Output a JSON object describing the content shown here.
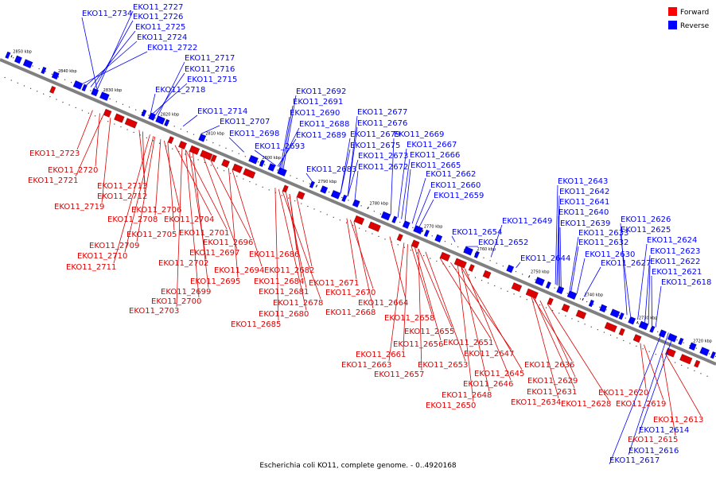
{
  "caption": "Escherichia coli KO11, complete genome. - 0..4920168",
  "legend": [
    {
      "label": "Forward",
      "color": "#ff0000"
    },
    {
      "label": "Reverse",
      "color": "#0000ff"
    }
  ],
  "colors": {
    "forward": "#dd0000",
    "reverse": "#0000ff",
    "axis": "#808080"
  },
  "ticks": [
    "2850 kbp",
    "2840 kbp",
    "2830 kbp",
    "2820 kbp",
    "2810 kbp",
    "2800 kbp",
    "2790 kbp",
    "2780 kbp",
    "2770 kbp",
    "2760 kbp",
    "2750 kbp",
    "2740 kbp",
    "2730 kbp",
    "2720 kbp"
  ],
  "genes": [
    {
      "id": "EKO11_2734",
      "strand": "reverse"
    },
    {
      "id": "EKO11_2727",
      "strand": "reverse"
    },
    {
      "id": "EKO11_2726",
      "strand": "reverse"
    },
    {
      "id": "EKO11_2725",
      "strand": "reverse"
    },
    {
      "id": "EKO11_2724",
      "strand": "reverse"
    },
    {
      "id": "EKO11_2722",
      "strand": "reverse"
    },
    {
      "id": "EKO11_2717",
      "strand": "reverse"
    },
    {
      "id": "EKO11_2716",
      "strand": "reverse"
    },
    {
      "id": "EKO11_2715",
      "strand": "reverse"
    },
    {
      "id": "EKO11_2718",
      "strand": "reverse"
    },
    {
      "id": "EKO11_2714",
      "strand": "reverse"
    },
    {
      "id": "EKO11_2707",
      "strand": "reverse"
    },
    {
      "id": "EKO11_2698",
      "strand": "reverse"
    },
    {
      "id": "EKO11_2693",
      "strand": "reverse"
    },
    {
      "id": "EKO11_2692",
      "strand": "reverse"
    },
    {
      "id": "EKO11_2691",
      "strand": "reverse"
    },
    {
      "id": "EKO11_2690",
      "strand": "reverse"
    },
    {
      "id": "EKO11_2688",
      "strand": "reverse"
    },
    {
      "id": "EKO11_2689",
      "strand": "reverse"
    },
    {
      "id": "EKO11_2683",
      "strand": "reverse"
    },
    {
      "id": "EKO11_2677",
      "strand": "reverse"
    },
    {
      "id": "EKO11_2676",
      "strand": "reverse"
    },
    {
      "id": "EKO11_2679",
      "strand": "reverse"
    },
    {
      "id": "EKO11_2669",
      "strand": "reverse"
    },
    {
      "id": "EKO11_2675",
      "strand": "reverse"
    },
    {
      "id": "EKO11_2667",
      "strand": "reverse"
    },
    {
      "id": "EKO11_2673",
      "strand": "reverse"
    },
    {
      "id": "EKO11_2666",
      "strand": "reverse"
    },
    {
      "id": "EKO11_2672",
      "strand": "reverse"
    },
    {
      "id": "EKO11_2665",
      "strand": "reverse"
    },
    {
      "id": "EKO11_2662",
      "strand": "reverse"
    },
    {
      "id": "EKO11_2660",
      "strand": "reverse"
    },
    {
      "id": "EKO11_2659",
      "strand": "reverse"
    },
    {
      "id": "EKO11_2654",
      "strand": "reverse"
    },
    {
      "id": "EKO11_2652",
      "strand": "reverse"
    },
    {
      "id": "EKO11_2649",
      "strand": "reverse"
    },
    {
      "id": "EKO11_2644",
      "strand": "reverse"
    },
    {
      "id": "EKO11_2643",
      "strand": "reverse"
    },
    {
      "id": "EKO11_2642",
      "strand": "reverse"
    },
    {
      "id": "EKO11_2641",
      "strand": "reverse"
    },
    {
      "id": "EKO11_2640",
      "strand": "reverse"
    },
    {
      "id": "EKO11_2639",
      "strand": "reverse"
    },
    {
      "id": "EKO11_2633",
      "strand": "reverse"
    },
    {
      "id": "EKO11_2632",
      "strand": "reverse"
    },
    {
      "id": "EKO11_2630",
      "strand": "reverse"
    },
    {
      "id": "EKO11_2627",
      "strand": "reverse"
    },
    {
      "id": "EKO11_2626",
      "strand": "reverse"
    },
    {
      "id": "EKO11_2625",
      "strand": "reverse"
    },
    {
      "id": "EKO11_2624",
      "strand": "reverse"
    },
    {
      "id": "EKO11_2623",
      "strand": "reverse"
    },
    {
      "id": "EKO11_2622",
      "strand": "reverse"
    },
    {
      "id": "EKO11_2621",
      "strand": "reverse"
    },
    {
      "id": "EKO11_2618",
      "strand": "reverse"
    },
    {
      "id": "EKO11_2614",
      "strand": "reverse"
    },
    {
      "id": "EKO11_2616",
      "strand": "reverse"
    },
    {
      "id": "EKO11_2617",
      "strand": "reverse"
    },
    {
      "id": "EKO11_2723",
      "strand": "forward"
    },
    {
      "id": "EKO11_2720",
      "strand": "forward"
    },
    {
      "id": "EKO11_2721",
      "strand": "forward"
    },
    {
      "id": "EKO11_2713",
      "strand": "forward"
    },
    {
      "id": "EKO11_2712",
      "strand": "forward"
    },
    {
      "id": "EKO11_2719",
      "strand": "forward"
    },
    {
      "id": "EKO11_2706",
      "strand": "forward"
    },
    {
      "id": "EKO11_2708",
      "strand": "forward"
    },
    {
      "id": "EKO11_2704",
      "strand": "forward"
    },
    {
      "id": "EKO11_2705",
      "strand": "forward"
    },
    {
      "id": "EKO11_2701",
      "strand": "forward"
    },
    {
      "id": "EKO11_2709",
      "strand": "forward"
    },
    {
      "id": "EKO11_2696",
      "strand": "forward"
    },
    {
      "id": "EKO11_2697",
      "strand": "forward"
    },
    {
      "id": "EKO11_2710",
      "strand": "forward"
    },
    {
      "id": "EKO11_2711",
      "strand": "forward"
    },
    {
      "id": "EKO11_2702",
      "strand": "forward"
    },
    {
      "id": "EKO11_2694",
      "strand": "forward"
    },
    {
      "id": "EKO11_2695",
      "strand": "forward"
    },
    {
      "id": "EKO11_2699",
      "strand": "forward"
    },
    {
      "id": "EKO11_2700",
      "strand": "forward"
    },
    {
      "id": "EKO11_2703",
      "strand": "forward"
    },
    {
      "id": "EKO11_2686",
      "strand": "forward"
    },
    {
      "id": "EKO11_2682",
      "strand": "forward"
    },
    {
      "id": "EKO11_2684",
      "strand": "forward"
    },
    {
      "id": "EKO11_2681",
      "strand": "forward"
    },
    {
      "id": "EKO11_2678",
      "strand": "forward"
    },
    {
      "id": "EKO11_2680",
      "strand": "forward"
    },
    {
      "id": "EKO11_2685",
      "strand": "forward"
    },
    {
      "id": "EKO11_2671",
      "strand": "forward"
    },
    {
      "id": "EKO11_2670",
      "strand": "forward"
    },
    {
      "id": "EKO11_2664",
      "strand": "forward"
    },
    {
      "id": "EKO11_2668",
      "strand": "forward"
    },
    {
      "id": "EKO11_2658",
      "strand": "forward"
    },
    {
      "id": "EKO11_2655",
      "strand": "forward"
    },
    {
      "id": "EKO11_2656",
      "strand": "forward"
    },
    {
      "id": "EKO11_2651",
      "strand": "forward"
    },
    {
      "id": "EKO11_2661",
      "strand": "forward"
    },
    {
      "id": "EKO11_2647",
      "strand": "forward"
    },
    {
      "id": "EKO11_2663",
      "strand": "forward"
    },
    {
      "id": "EKO11_2653",
      "strand": "forward"
    },
    {
      "id": "EKO11_2645",
      "strand": "forward"
    },
    {
      "id": "EKO11_2657",
      "strand": "forward"
    },
    {
      "id": "EKO11_2646",
      "strand": "forward"
    },
    {
      "id": "EKO11_2648",
      "strand": "forward"
    },
    {
      "id": "EKO11_2650",
      "strand": "forward"
    },
    {
      "id": "EKO11_2636",
      "strand": "forward"
    },
    {
      "id": "EKO11_2629",
      "strand": "forward"
    },
    {
      "id": "EKO11_2631",
      "strand": "forward"
    },
    {
      "id": "EKO11_2634",
      "strand": "forward"
    },
    {
      "id": "EKO11_2628",
      "strand": "forward"
    },
    {
      "id": "EKO11_2620",
      "strand": "forward"
    },
    {
      "id": "EKO11_2619",
      "strand": "forward"
    },
    {
      "id": "EKO11_2613",
      "strand": "forward"
    },
    {
      "id": "EKO11_2615",
      "strand": "forward"
    }
  ]
}
